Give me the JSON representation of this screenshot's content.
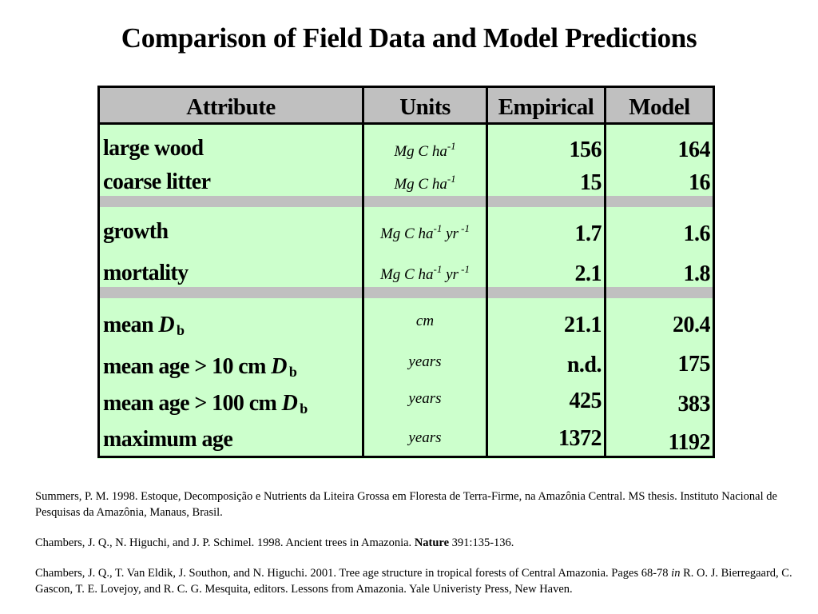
{
  "title": "Comparison of Field Data and Model Predictions",
  "table": {
    "headers": {
      "attribute": "Attribute",
      "units": "Units",
      "empirical": "Empirical",
      "model": "Model"
    },
    "rows": [
      {
        "attr": "large wood",
        "unit_base": "Mg C ha",
        "unit_sup1": "-1",
        "emp": "156",
        "mod": "164"
      },
      {
        "attr": "coarse litter",
        "unit_base": "Mg C ha",
        "unit_sup1": "-1",
        "emp": "15",
        "mod": "16"
      },
      {
        "attr": "growth",
        "unit_base": "Mg C ha",
        "unit_sup1": "-1",
        "unit_mid": " yr",
        "unit_sup2": " -1",
        "emp": "1.7",
        "mod": "1.6"
      },
      {
        "attr": "mortality",
        "unit_base": "Mg C ha",
        "unit_sup1": "-1",
        "unit_mid": " yr",
        "unit_sup2": " -1",
        "emp": "2.1",
        "mod": "1.8"
      },
      {
        "attr": "mean ",
        "attr_var": "D",
        "attr_sub": "b",
        "unit_base": "cm",
        "emp": "21.1",
        "mod": "20.4"
      },
      {
        "attr": "mean age > 10 cm ",
        "attr_var": "D",
        "attr_sub": "b",
        "unit_base": "years",
        "emp": "n.d.",
        "mod": "175"
      },
      {
        "attr": "mean age > 100 cm ",
        "attr_var": "D",
        "attr_sub": "b",
        "unit_base": "years",
        "emp": "425",
        "mod": "383"
      },
      {
        "attr": "maximum age",
        "unit_base": "years",
        "emp": "1372",
        "mod": "1192"
      }
    ]
  },
  "references": {
    "r1": "Summers, P. M. 1998. Estoque, Decomposição e Nutrients da Liteira Grossa em Floresta de Terra-Firme, na Amazônia Central. MS thesis. Instituto Nacional de Pesquisas da Amazônia, Manaus, Brasil.",
    "r2_a": "Chambers, J. Q., N. Higuchi, and J. P. Schimel. 1998. Ancient trees in Amazonia. ",
    "r2_b": "Nature",
    "r2_c": " 391:135-136.",
    "r3_a": "Chambers, J. Q., T. Van Eldik, J. Southon, and N. Higuchi. 2001. Tree age structure in tropical forests of Central Amazonia. Pages 68-78 ",
    "r3_b": "in",
    "r3_c": " R. O. J. Bierregaard, C. Gascon, T. E. Lovejoy, and R. C. G. Mesquita, editors. Lessons from Amazonia. Yale Univeristy Press, New Haven."
  }
}
